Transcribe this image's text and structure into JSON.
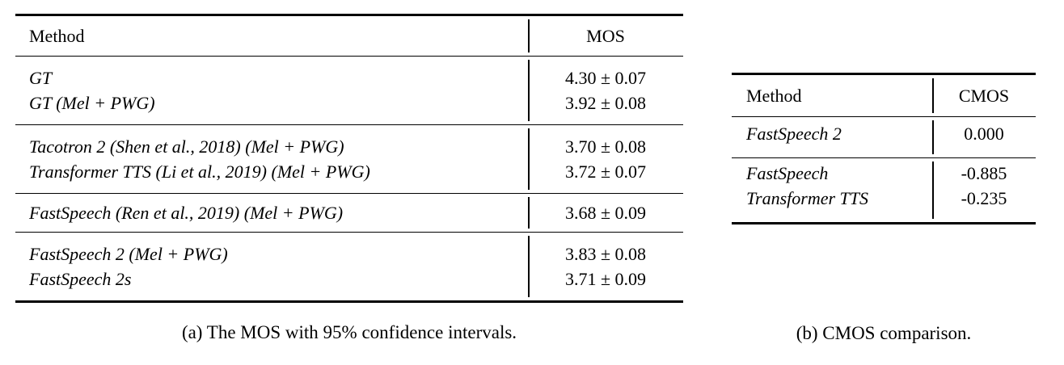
{
  "page": {
    "background_color": "#ffffff",
    "text_color": "#000000"
  },
  "table_a": {
    "caption": "(a) The MOS with 95% confidence intervals.",
    "header": {
      "method": "Method",
      "value": "MOS"
    },
    "groups": [
      {
        "rows": [
          {
            "method": "GT",
            "value": "4.30 ± 0.07"
          },
          {
            "method": "GT (Mel + PWG)",
            "value": "3.92 ± 0.08"
          }
        ]
      },
      {
        "rows": [
          {
            "method": "Tacotron 2 (Shen et al., 2018) (Mel + PWG)",
            "value": "3.70 ± 0.08"
          },
          {
            "method": "Transformer TTS (Li et al., 2019) (Mel + PWG)",
            "value": "3.72 ± 0.07"
          }
        ]
      },
      {
        "rows": [
          {
            "method": "FastSpeech (Ren et al., 2019) (Mel + PWG)",
            "value": "3.68 ± 0.09"
          }
        ]
      },
      {
        "rows": [
          {
            "method": "FastSpeech 2 (Mel + PWG)",
            "value": "3.83 ± 0.08"
          },
          {
            "method": "FastSpeech 2s",
            "value": "3.71 ± 0.09"
          }
        ]
      }
    ]
  },
  "table_b": {
    "caption": "(b) CMOS comparison.",
    "header": {
      "method": "Method",
      "value": "CMOS"
    },
    "groups": [
      {
        "rows": [
          {
            "method": "FastSpeech 2",
            "value": "0.000"
          }
        ]
      },
      {
        "rows": [
          {
            "method": "FastSpeech",
            "value": "-0.885"
          },
          {
            "method": "Transformer TTS",
            "value": "-0.235"
          }
        ]
      }
    ]
  }
}
